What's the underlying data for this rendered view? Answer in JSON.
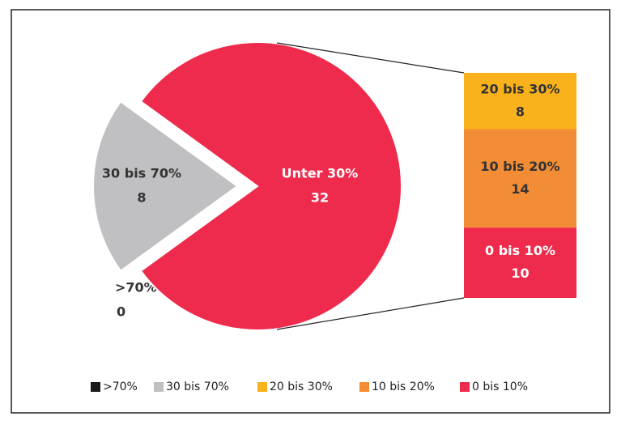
{
  "chart_data": {
    "type": "pie",
    "categories": [
      ">70%",
      "30 bis 70%",
      "Unter 30%"
    ],
    "values": [
      0,
      8,
      32
    ],
    "colors": [
      "#1a1a1a",
      "#c0c0c2",
      "#ee2b4d"
    ],
    "breakdown": {
      "type": "bar",
      "categories": [
        "20 bis 30%",
        "10 bis 20%",
        "0 bis 10%"
      ],
      "values": [
        8,
        14,
        10
      ],
      "colors": [
        "#f9b21c",
        "#f28c35",
        "#ee2b4d"
      ]
    },
    "legend": "bottom"
  }
}
